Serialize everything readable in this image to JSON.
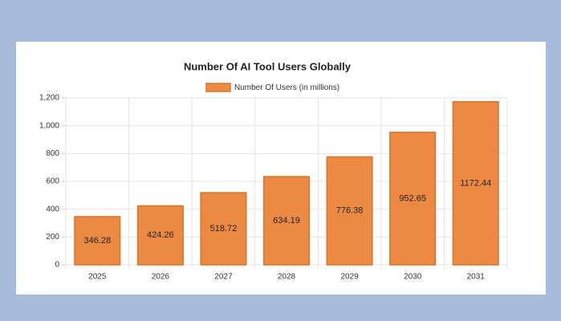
{
  "chart_data": {
    "type": "bar",
    "title": "Number Of AI Tool Users Globally",
    "categories": [
      "2025",
      "2026",
      "2027",
      "2028",
      "2029",
      "2030",
      "2031"
    ],
    "series": [
      {
        "name": "Number Of Users (in millions)",
        "color": "#ec8a43",
        "values": [
          346.28,
          424.26,
          518.72,
          634.19,
          776.38,
          952.65,
          1172.44
        ]
      }
    ],
    "ylim": [
      0,
      1200
    ],
    "yticks": [
      0,
      200,
      400,
      600,
      800,
      {
        "value": 1000,
        "label": "1,000"
      },
      {
        "value": 1200,
        "label": "1,200"
      }
    ],
    "grid": true
  }
}
